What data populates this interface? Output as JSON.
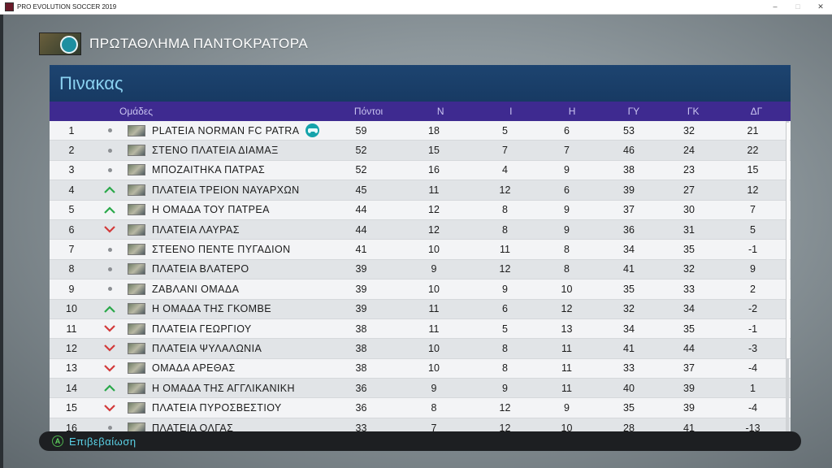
{
  "window": {
    "title": "PRO EVOLUTION SOCCER 2019"
  },
  "league": {
    "title": "ΠΡΩΤΑΘΛΗΜΑ ΠΑΝΤΟΚΡΑΤΟΡΑ"
  },
  "table": {
    "title": "Πινακας",
    "headers": {
      "team": "Ομάδες",
      "points": "Πόντοι",
      "won": "Ν",
      "drawn": "Ι",
      "lost": "Η",
      "gf": "ΓΥ",
      "ga": "ΓΚ",
      "gd": "ΔΓ"
    },
    "colors": {
      "up": "#2aa84a",
      "down": "#d23a3a",
      "same": "#8c8f93",
      "header_bg": "#3e2a90"
    },
    "rows": [
      {
        "rank": "1",
        "trend": "same",
        "name": "PLATEIA NORMAN FC PATRA",
        "pts": "59",
        "w": "18",
        "d": "5",
        "l": "6",
        "gf": "53",
        "ga": "32",
        "gd": "21",
        "user": true
      },
      {
        "rank": "2",
        "trend": "same",
        "name": "ΣΤΕΝΟ ΠΛΑΤΕΙΑ ΔΙΑΜΑΞ",
        "pts": "52",
        "w": "15",
        "d": "7",
        "l": "7",
        "gf": "46",
        "ga": "24",
        "gd": "22"
      },
      {
        "rank": "3",
        "trend": "same",
        "name": "ΜΠΟΖΑΙΤΗΚΑ ΠΑΤΡΑΣ",
        "pts": "52",
        "w": "16",
        "d": "4",
        "l": "9",
        "gf": "38",
        "ga": "23",
        "gd": "15"
      },
      {
        "rank": "4",
        "trend": "up",
        "name": "ΠΛΑΤΕΙΑ ΤΡΕΙΟΝ ΝΑΥΑΡΧΩΝ",
        "pts": "45",
        "w": "11",
        "d": "12",
        "l": "6",
        "gf": "39",
        "ga": "27",
        "gd": "12"
      },
      {
        "rank": "5",
        "trend": "up",
        "name": "Η ΟΜΑΔΑ ΤΟΥ ΠΑΤΡΕΑ",
        "pts": "44",
        "w": "12",
        "d": "8",
        "l": "9",
        "gf": "37",
        "ga": "30",
        "gd": "7"
      },
      {
        "rank": "6",
        "trend": "down",
        "name": "ΠΛΑΤΕΙΑ ΛΑΥΡΑΣ",
        "pts": "44",
        "w": "12",
        "d": "8",
        "l": "9",
        "gf": "36",
        "ga": "31",
        "gd": "5"
      },
      {
        "rank": "7",
        "trend": "same",
        "name": "ΣΤΕΕΝΟ ΠΕΝΤΕ ΠΥΓΑΔΙΟΝ",
        "pts": "41",
        "w": "10",
        "d": "11",
        "l": "8",
        "gf": "34",
        "ga": "35",
        "gd": "-1"
      },
      {
        "rank": "8",
        "trend": "same",
        "name": "ΠΛΑΤΕΙΑ ΒΛΑΤΕΡΟ",
        "pts": "39",
        "w": "9",
        "d": "12",
        "l": "8",
        "gf": "41",
        "ga": "32",
        "gd": "9"
      },
      {
        "rank": "9",
        "trend": "same",
        "name": "ΖΑΒΛΑΝΙ ΟΜΑΔΑ",
        "pts": "39",
        "w": "10",
        "d": "9",
        "l": "10",
        "gf": "35",
        "ga": "33",
        "gd": "2"
      },
      {
        "rank": "10",
        "trend": "up",
        "name": "Η ΟΜΑΔΑ ΤΗΣ ΓΚΟΜΒΕ",
        "pts": "39",
        "w": "11",
        "d": "6",
        "l": "12",
        "gf": "32",
        "ga": "34",
        "gd": "-2"
      },
      {
        "rank": "11",
        "trend": "down",
        "name": "ΠΛΑΤΕΙΑ ΓΕΩΡΓΙΟΥ",
        "pts": "38",
        "w": "11",
        "d": "5",
        "l": "13",
        "gf": "34",
        "ga": "35",
        "gd": "-1"
      },
      {
        "rank": "12",
        "trend": "down",
        "name": "ΠΛΑΤΕΙΑ ΨΥΛΑΛΩΝΙΑ",
        "pts": "38",
        "w": "10",
        "d": "8",
        "l": "11",
        "gf": "41",
        "ga": "44",
        "gd": "-3"
      },
      {
        "rank": "13",
        "trend": "down",
        "name": "ΟΜΑΔΑ ΑΡΕΘΑΣ",
        "pts": "38",
        "w": "10",
        "d": "8",
        "l": "11",
        "gf": "33",
        "ga": "37",
        "gd": "-4"
      },
      {
        "rank": "14",
        "trend": "up",
        "name": "Η ΟΜΑΔΑ ΤΗΣ ΑΓΓΛΙΚΑΝΙΚΗ",
        "pts": "36",
        "w": "9",
        "d": "9",
        "l": "11",
        "gf": "40",
        "ga": "39",
        "gd": "1"
      },
      {
        "rank": "15",
        "trend": "down",
        "name": "ΠΛΑΤΕΙΑ ΠΥΡΟΣΒΕΣΤΙΟΥ",
        "pts": "36",
        "w": "8",
        "d": "12",
        "l": "9",
        "gf": "35",
        "ga": "39",
        "gd": "-4"
      },
      {
        "rank": "16",
        "trend": "same",
        "name": "ΠΛΑΤΕΙΑ ΟΛΓΑΣ",
        "pts": "33",
        "w": "7",
        "d": "12",
        "l": "10",
        "gf": "28",
        "ga": "41",
        "gd": "-13"
      }
    ]
  },
  "footer": {
    "button_glyph": "A",
    "confirm_label": "Επιβεβαίωση"
  }
}
